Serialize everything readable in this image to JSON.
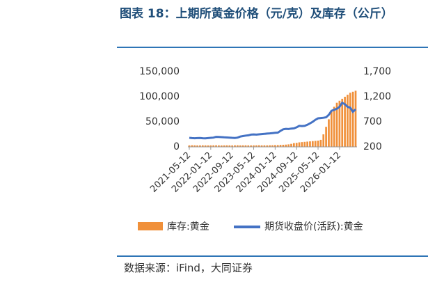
{
  "chart_data": {
    "type": "bar-line",
    "title": "图表 18：上期所黄金价格（元/克）及库存（公斤）",
    "source": "数据来源：iFind，大同证券",
    "x": [
      "2021-05-12",
      "2021-06-12",
      "2021-07-12",
      "2021-08-12",
      "2021-09-12",
      "2021-10-12",
      "2021-11-12",
      "2021-12-12",
      "2022-01-12",
      "2022-02-12",
      "2022-03-12",
      "2022-04-12",
      "2022-05-12",
      "2022-06-12",
      "2022-07-12",
      "2022-08-12",
      "2022-09-12",
      "2022-10-12",
      "2022-11-12",
      "2022-12-12",
      "2023-01-12",
      "2023-02-12",
      "2023-03-12",
      "2023-04-12",
      "2023-05-12",
      "2023-06-12",
      "2023-07-12",
      "2023-08-12",
      "2023-09-12",
      "2023-10-12",
      "2023-11-12",
      "2023-12-12",
      "2024-01-12",
      "2024-02-12",
      "2024-03-12",
      "2024-04-12",
      "2024-05-12",
      "2024-06-12",
      "2024-07-12",
      "2024-08-12",
      "2024-09-12",
      "2024-10-12",
      "2024-11-12",
      "2024-12-12",
      "2025-01-12",
      "2025-02-12",
      "2025-03-12",
      "2025-04-12",
      "2025-05-12",
      "2025-06-12",
      "2025-07-12",
      "2025-08-12",
      "2025-09-12",
      "2025-10-12",
      "2025-11-12",
      "2025-12-12",
      "2026-01-12",
      "2026-02-12",
      "2026-03-12",
      "2026-04-12",
      "2026-05-12",
      "2026-06-12",
      "2026-07-12"
    ],
    "xticks": [
      "2021-05-12",
      "2022-01-12",
      "2022-09-12",
      "2023-05-12",
      "2024-01-12",
      "2024-09-12",
      "2025-05-12",
      "2026-01-12"
    ],
    "series": [
      {
        "name": "库存:黄金",
        "color": "#f0903a",
        "axis": "y",
        "values": [
          3000,
          3200,
          3100,
          2900,
          3000,
          3100,
          3000,
          2900,
          3000,
          3100,
          3200,
          3000,
          2900,
          3000,
          3100,
          3000,
          2900,
          3100,
          3200,
          3000,
          3000,
          3100,
          3000,
          2900,
          3000,
          3100,
          3200,
          3000,
          3100,
          3000,
          3200,
          3300,
          3500,
          3600,
          4000,
          4200,
          4500,
          5000,
          6000,
          7500,
          8000,
          9000,
          9500,
          10000,
          10500,
          11000,
          11500,
          12000,
          12500,
          14000,
          25000,
          40000,
          55000,
          70000,
          80000,
          88000,
          92000,
          96000,
          100000,
          104000,
          108000,
          110000,
          112000
        ]
      },
      {
        "name": "期货收盘价(活跃):黄金",
        "color": "#4472c4",
        "axis": "y2",
        "values": [
          380,
          375,
          372,
          375,
          378,
          372,
          370,
          375,
          380,
          385,
          400,
          398,
          395,
          390,
          388,
          385,
          380,
          378,
          385,
          405,
          415,
          425,
          430,
          445,
          448,
          445,
          450,
          455,
          460,
          465,
          470,
          475,
          480,
          485,
          520,
          550,
          560,
          555,
          565,
          570,
          590,
          620,
          615,
          620,
          640,
          670,
          700,
          740,
          770,
          775,
          780,
          790,
          840,
          920,
          940,
          960,
          1000,
          1080,
          1050,
          1000,
          980,
          900,
          950
        ]
      }
    ],
    "ylim": [
      0,
      150000
    ],
    "yticks": [
      {
        "value": 0,
        "label": "0"
      },
      {
        "value": 50000,
        "label": "50,000"
      },
      {
        "value": 100000,
        "label": "100,000"
      },
      {
        "value": 150000,
        "label": "150,000"
      }
    ],
    "y2lim": [
      200,
      1700
    ],
    "y2ticks": [
      200,
      700,
      {
        "value": 1200,
        "label": "1,200"
      },
      {
        "value": 1700,
        "label": "1,700"
      }
    ]
  }
}
